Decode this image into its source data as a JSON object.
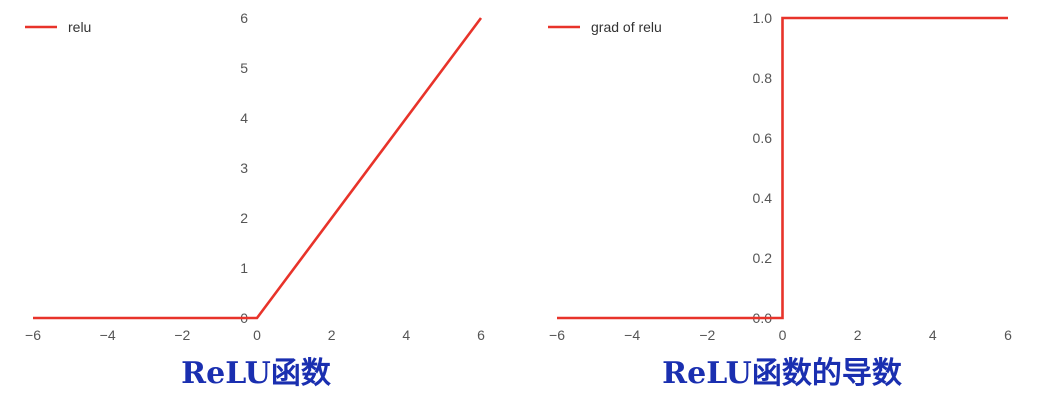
{
  "chart_data": [
    {
      "type": "line",
      "x": [
        -6,
        0,
        6
      ],
      "series": [
        {
          "name": "relu",
          "values": [
            0,
            0,
            6
          ]
        }
      ],
      "xlim": [
        -6,
        6
      ],
      "ylim": [
        0,
        6
      ],
      "x_ticks": [
        "−6",
        "−4",
        "−2",
        "0",
        "2",
        "4",
        "6"
      ],
      "y_ticks": [
        "0",
        "1",
        "2",
        "3",
        "4",
        "5",
        "6"
      ],
      "legend": "top-left",
      "grid": false,
      "color": "#e8332a",
      "caption": "ReLU函数"
    },
    {
      "type": "line",
      "x": [
        -6,
        0,
        0,
        6
      ],
      "series": [
        {
          "name": "grad of relu",
          "values": [
            0,
            0,
            1,
            1
          ]
        }
      ],
      "xlim": [
        -6,
        6
      ],
      "ylim": [
        0,
        1
      ],
      "x_ticks": [
        "−6",
        "−4",
        "−2",
        "0",
        "2",
        "4",
        "6"
      ],
      "y_ticks": [
        "0.0",
        "0.2",
        "0.4",
        "0.6",
        "0.8",
        "1.0"
      ],
      "legend": "top-left",
      "grid": false,
      "color": "#e8332a",
      "caption": "ReLU函数的导数"
    }
  ]
}
